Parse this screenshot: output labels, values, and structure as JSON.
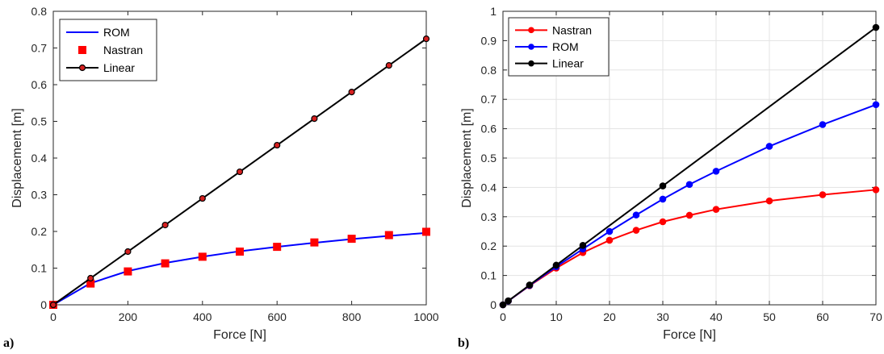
{
  "chart_data": [
    {
      "type": "line",
      "panel_label": "a)",
      "xlabel": "Force [N]",
      "ylabel": "Displacement [m]",
      "xlim": [
        0,
        1000
      ],
      "ylim": [
        0,
        0.8
      ],
      "xticks": [
        0,
        200,
        400,
        600,
        800,
        1000
      ],
      "yticks": [
        0,
        0.1,
        0.2,
        0.3,
        0.4,
        0.5,
        0.6,
        0.7,
        0.8
      ],
      "xtick_labels": [
        "0",
        "200",
        "400",
        "600",
        "800",
        "1000"
      ],
      "ytick_labels": [
        "0",
        "0.1",
        "0.2",
        "0.3",
        "0.4",
        "0.5",
        "0.6",
        "0.7",
        "0.8"
      ],
      "legend": "top-left",
      "grid": false,
      "series": [
        {
          "name": "ROM",
          "color": "#0000ff",
          "marker": "none",
          "x": [
            0,
            100,
            200,
            300,
            400,
            500,
            600,
            700,
            800,
            900,
            1000
          ],
          "y": [
            0,
            0.059,
            0.092,
            0.114,
            0.131,
            0.146,
            0.158,
            0.169,
            0.179,
            0.188,
            0.196
          ]
        },
        {
          "name": "Nastran",
          "color": "#ff0000",
          "marker": "square",
          "x": [
            0,
            100,
            200,
            300,
            400,
            500,
            600,
            700,
            800,
            900,
            1000
          ],
          "y": [
            0,
            0.058,
            0.091,
            0.113,
            0.131,
            0.145,
            0.158,
            0.17,
            0.18,
            0.19,
            0.199
          ]
        },
        {
          "name": "Linear",
          "color": "#000000",
          "marker": "circle-red",
          "x": [
            0,
            100,
            200,
            300,
            400,
            500,
            600,
            700,
            800,
            900,
            1000
          ],
          "y": [
            0,
            0.0725,
            0.145,
            0.2175,
            0.29,
            0.3625,
            0.435,
            0.5075,
            0.58,
            0.6525,
            0.725
          ]
        }
      ]
    },
    {
      "type": "line",
      "panel_label": "b)",
      "xlabel": "Force [N]",
      "ylabel": "Displacement [m]",
      "xlim": [
        0,
        70
      ],
      "ylim": [
        0,
        1
      ],
      "xticks": [
        0,
        10,
        20,
        30,
        40,
        50,
        60,
        70
      ],
      "yticks": [
        0,
        0.1,
        0.2,
        0.3,
        0.4,
        0.5,
        0.6,
        0.7,
        0.8,
        0.9,
        1
      ],
      "xtick_labels": [
        "0",
        "10",
        "20",
        "30",
        "40",
        "50",
        "60",
        "70"
      ],
      "ytick_labels": [
        "0",
        "0.1",
        "0.2",
        "0.3",
        "0.4",
        "0.5",
        "0.6",
        "0.7",
        "0.8",
        "0.9",
        "1"
      ],
      "legend": "top-left",
      "grid": true,
      "series": [
        {
          "name": "Nastran",
          "color": "#ff0000",
          "marker": "circle",
          "x": [
            0,
            1,
            5,
            10,
            15,
            20,
            25,
            30,
            35,
            40,
            50,
            60,
            70
          ],
          "y": [
            0,
            0.013,
            0.065,
            0.125,
            0.178,
            0.22,
            0.254,
            0.283,
            0.305,
            0.325,
            0.354,
            0.375,
            0.392
          ]
        },
        {
          "name": "ROM",
          "color": "#0000ff",
          "marker": "circle",
          "x": [
            0,
            1,
            5,
            10,
            15,
            20,
            25,
            30,
            35,
            40,
            50,
            60,
            70
          ],
          "y": [
            0,
            0.013,
            0.066,
            0.13,
            0.19,
            0.25,
            0.306,
            0.36,
            0.41,
            0.455,
            0.54,
            0.614,
            0.682
          ]
        },
        {
          "name": "Linear",
          "color": "#000000",
          "marker": "circle",
          "x": [
            0,
            1,
            5,
            10,
            15,
            30,
            70
          ],
          "y": [
            0,
            0.0135,
            0.0675,
            0.135,
            0.2025,
            0.405,
            0.945
          ]
        }
      ]
    }
  ]
}
